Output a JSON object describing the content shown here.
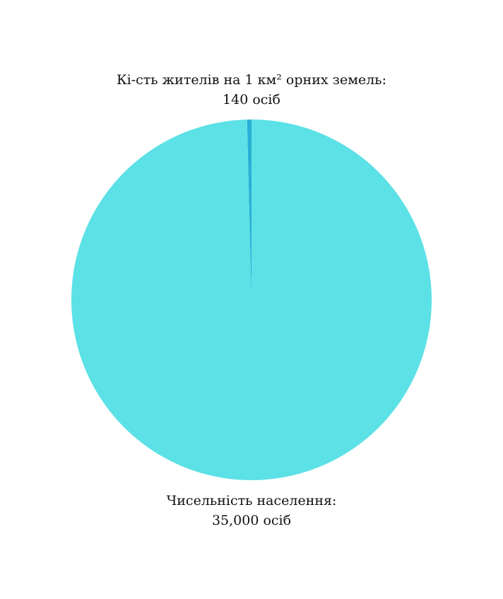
{
  "chart_data": {
    "type": "pie",
    "slices": [
      {
        "label": "Кі-сть жителів на 1 км² орних земель:",
        "value_text": "140 осіб",
        "value": 140,
        "color": "#2ab0d6"
      },
      {
        "label": "Чисельність населення:",
        "value_text": "35,000 осіб",
        "value": 35000,
        "color": "#5ce1e6"
      }
    ]
  }
}
